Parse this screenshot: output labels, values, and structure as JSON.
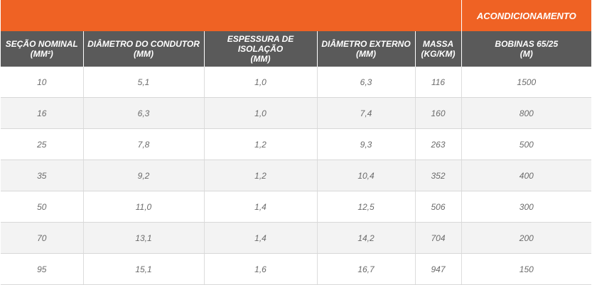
{
  "group_header": "ACONDICIONAMENTO",
  "columns": [
    {
      "line1": "SEÇÃO NOMINAL",
      "line2": "(MM²)"
    },
    {
      "line1": "DIÂMETRO DO CONDUTOR",
      "line2": "(MM)"
    },
    {
      "line1": "ESPESSURA DE ISOLAÇÃO",
      "line2": "(MM)"
    },
    {
      "line1": "DIÂMETRO EXTERNO",
      "line2": "(MM)"
    },
    {
      "line1": "MASSA",
      "line2": "(KG/KM)"
    },
    {
      "line1": "BOBINAS 65/25",
      "line2": "(M)"
    }
  ],
  "rows": [
    [
      "10",
      "5,1",
      "1,0",
      "6,3",
      "116",
      "1500"
    ],
    [
      "16",
      "6,3",
      "1,0",
      "7,4",
      "160",
      "800"
    ],
    [
      "25",
      "7,8",
      "1,2",
      "9,3",
      "263",
      "500"
    ],
    [
      "35",
      "9,2",
      "1,2",
      "10,4",
      "352",
      "400"
    ],
    [
      "50",
      "11,0",
      "1,4",
      "12,5",
      "506",
      "300"
    ],
    [
      "70",
      "13,1",
      "1,4",
      "14,2",
      "704",
      "200"
    ],
    [
      "95",
      "15,1",
      "1,6",
      "16,7",
      "947",
      "150"
    ]
  ],
  "colors": {
    "orange": "#ef6224",
    "header_gray": "#5a5a5a"
  }
}
